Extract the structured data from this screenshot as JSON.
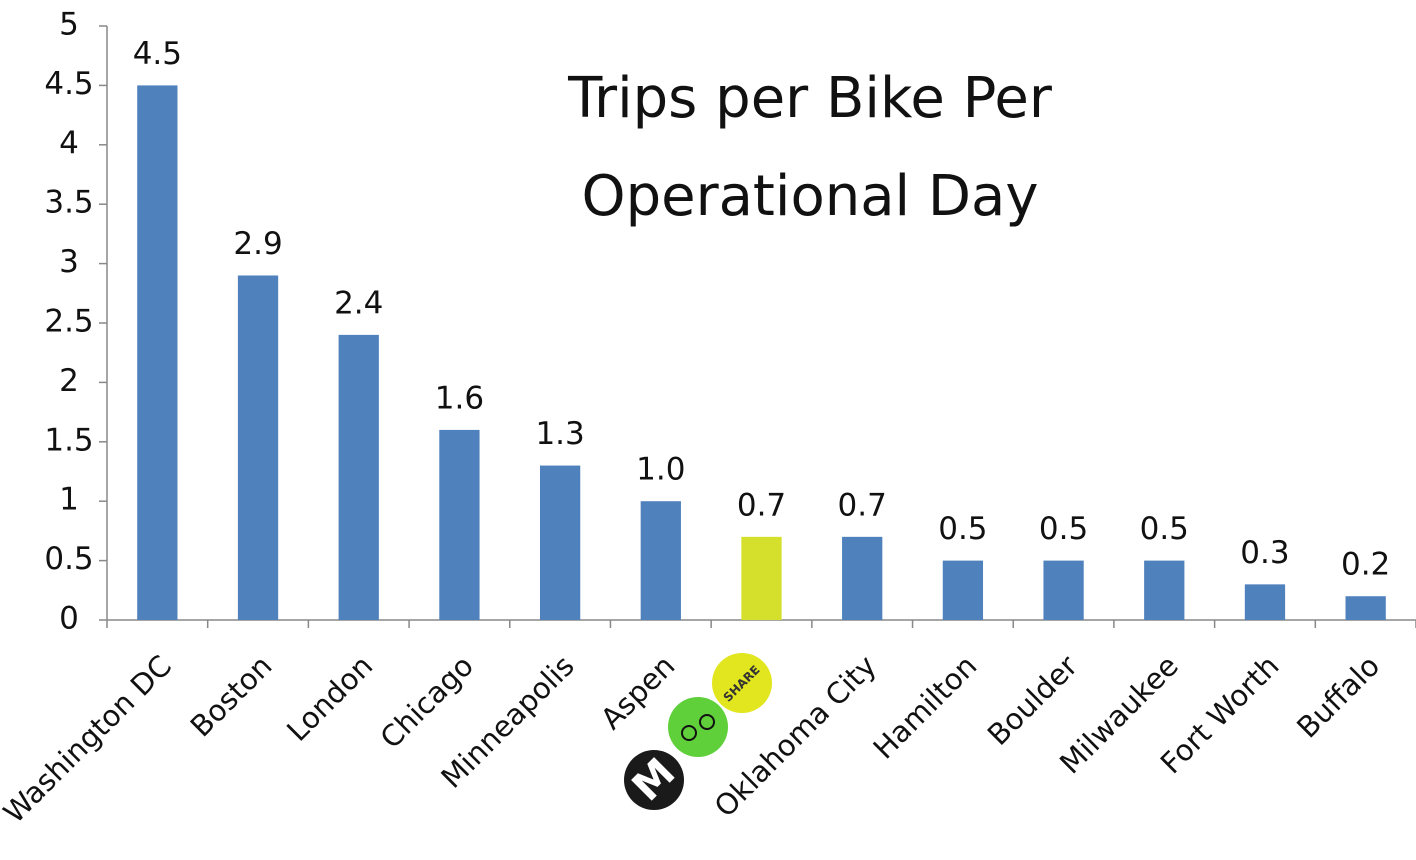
{
  "chart_data": {
    "type": "bar",
    "title": "Trips per Bike Per Operational Day",
    "categories": [
      "Washington DC",
      "Boston",
      "London",
      "Chicago",
      "Minneapolis",
      "Aspen",
      null,
      "Oklahoma City",
      "Hamilton",
      "Boulder",
      "Milwaukee",
      "Fort Worth",
      "Buffalo"
    ],
    "values": [
      4.5,
      2.9,
      2.4,
      1.6,
      1.3,
      1.0,
      0.7,
      0.7,
      0.5,
      0.5,
      0.5,
      0.3,
      0.2
    ],
    "value_labels": [
      "4.5",
      "2.9",
      "2.4",
      "1.6",
      "1.3",
      "1.0",
      "0.7",
      "0.7",
      "0.5",
      "0.5",
      "0.5",
      "0.3",
      "0.2"
    ],
    "colors": [
      "#4f81bd",
      "#4f81bd",
      "#4f81bd",
      "#4f81bd",
      "#4f81bd",
      "#4f81bd",
      "#d4e02c",
      "#4f81bd",
      "#4f81bd",
      "#4f81bd",
      "#4f81bd",
      "#4f81bd",
      "#4f81bd"
    ],
    "ylim": [
      0,
      5
    ],
    "yticks": [
      0,
      0.5,
      1,
      1.5,
      2,
      2.5,
      3,
      3.5,
      4,
      4.5,
      5
    ],
    "grid": false,
    "logo": {
      "mark": "M",
      "label": "SHARE"
    }
  }
}
